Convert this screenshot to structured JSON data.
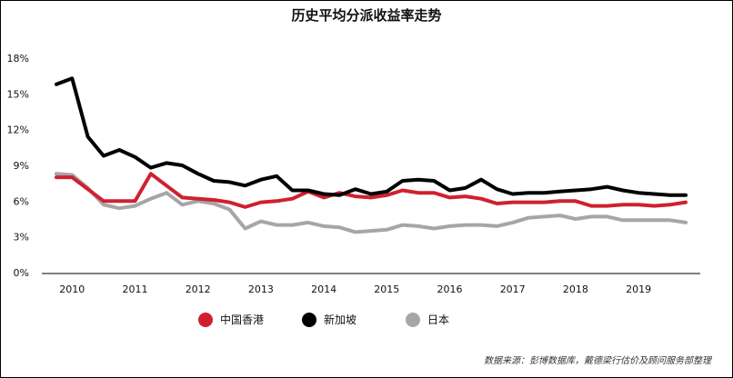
{
  "chart_data": {
    "type": "line",
    "title": "历史平均分派收益率走势",
    "xlabel": "",
    "ylabel": "",
    "ylim": [
      0,
      18
    ],
    "yticks": [
      "0%",
      "3%",
      "6%",
      "9%",
      "12%",
      "15%",
      "18%"
    ],
    "xticks": [
      "2010",
      "2011",
      "2012",
      "2013",
      "2014",
      "2015",
      "2016",
      "2017",
      "2018",
      "2019"
    ],
    "x_range": [
      2009.75,
      2019.75
    ],
    "grid": false,
    "legend_position": "bottom",
    "x": [
      2009.75,
      2010.0,
      2010.25,
      2010.5,
      2010.75,
      2011.0,
      2011.25,
      2011.5,
      2011.75,
      2012.0,
      2012.25,
      2012.5,
      2012.75,
      2013.0,
      2013.25,
      2013.5,
      2013.75,
      2014.0,
      2014.25,
      2014.5,
      2014.75,
      2015.0,
      2015.25,
      2015.5,
      2015.75,
      2016.0,
      2016.25,
      2016.5,
      2016.75,
      2017.0,
      2017.25,
      2017.5,
      2017.75,
      2018.0,
      2018.25,
      2018.5,
      2018.75,
      2019.0,
      2019.25,
      2019.5,
      2019.75
    ],
    "series": [
      {
        "name": "中国香港",
        "color": "#d0202e",
        "values": [
          8.0,
          8.0,
          7.0,
          6.0,
          6.0,
          6.0,
          8.3,
          7.3,
          6.3,
          6.2,
          6.1,
          5.9,
          5.5,
          5.9,
          6.0,
          6.2,
          6.8,
          6.3,
          6.7,
          6.4,
          6.3,
          6.5,
          6.9,
          6.7,
          6.7,
          6.3,
          6.4,
          6.2,
          5.8,
          5.9,
          5.9,
          5.9,
          6.0,
          6.0,
          5.6,
          5.6,
          5.7,
          5.7,
          5.6,
          5.7,
          5.9
        ]
      },
      {
        "name": "新加坡",
        "color": "#000000",
        "values": [
          15.8,
          16.3,
          11.4,
          9.8,
          10.3,
          9.7,
          8.8,
          9.2,
          9.0,
          8.3,
          7.7,
          7.6,
          7.3,
          7.8,
          8.1,
          6.9,
          6.9,
          6.6,
          6.5,
          7.0,
          6.6,
          6.8,
          7.7,
          7.8,
          7.7,
          6.9,
          7.1,
          7.8,
          7.0,
          6.6,
          6.7,
          6.7,
          6.8,
          6.9,
          7.0,
          7.2,
          6.9,
          6.7,
          6.6,
          6.5,
          6.5
        ]
      },
      {
        "name": "日本",
        "color": "#a6a6a6",
        "values": [
          8.3,
          8.2,
          7.1,
          5.7,
          5.4,
          5.6,
          6.2,
          6.7,
          5.7,
          6.0,
          5.8,
          5.3,
          3.7,
          4.3,
          4.0,
          4.0,
          4.2,
          3.9,
          3.8,
          3.4,
          3.5,
          3.6,
          4.0,
          3.9,
          3.7,
          3.9,
          4.0,
          4.0,
          3.9,
          4.2,
          4.6,
          4.7,
          4.8,
          4.5,
          4.7,
          4.7,
          4.4,
          4.4,
          4.4,
          4.4,
          4.2
        ]
      }
    ],
    "annotations": [
      "数据来源：彭博数据库，戴德梁行估价及顾问服务部整理"
    ]
  }
}
